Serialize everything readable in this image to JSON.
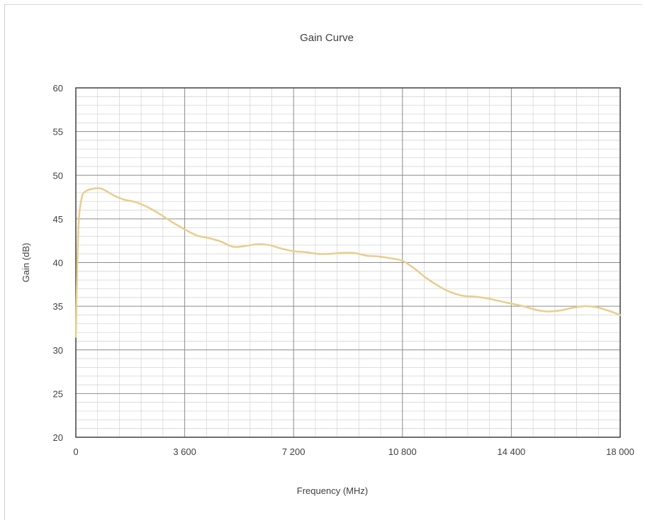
{
  "chart_data": {
    "type": "line",
    "title": "Gain Curve",
    "xlabel": "Frequency (MHz)",
    "ylabel": "Gain (dB)",
    "xlim": [
      0,
      18000
    ],
    "ylim": [
      20,
      60
    ],
    "xticks": [
      0,
      3600,
      7200,
      10800,
      14400,
      18000
    ],
    "xtick_labels": [
      "0",
      "3 600",
      "7 200",
      "10 800",
      "14 400",
      "18 000"
    ],
    "yticks": [
      20,
      25,
      30,
      35,
      40,
      45,
      50,
      55,
      60
    ],
    "ytick_labels": [
      "20",
      "25",
      "30",
      "35",
      "40",
      "45",
      "50",
      "55",
      "60"
    ],
    "grid": true,
    "minor_grid": true,
    "line_color": "#e8cd8c",
    "series": [
      {
        "x": [
          0,
          50,
          100,
          200,
          300,
          500,
          800,
          1000,
          1300,
          1600,
          2000,
          2400,
          2800,
          3200,
          3600,
          4000,
          4400,
          4800,
          5200,
          5600,
          6000,
          6400,
          6800,
          7200,
          7600,
          8000,
          8400,
          8800,
          9200,
          9600,
          10000,
          10400,
          10800,
          11200,
          11600,
          12000,
          12400,
          12800,
          13200,
          13600,
          14000,
          14400,
          14800,
          15200,
          15600,
          16000,
          16400,
          16800,
          17200,
          17600,
          18000
        ],
        "y": [
          31.5,
          40,
          45,
          47.5,
          48.1,
          48.4,
          48.5,
          48.2,
          47.6,
          47.2,
          46.9,
          46.3,
          45.5,
          44.6,
          43.8,
          43.1,
          42.8,
          42.4,
          41.8,
          41.9,
          42.1,
          42.0,
          41.6,
          41.3,
          41.2,
          41.0,
          41.0,
          41.1,
          41.1,
          40.8,
          40.7,
          40.5,
          40.2,
          39.3,
          38.2,
          37.3,
          36.6,
          36.2,
          36.1,
          35.9,
          35.6,
          35.3,
          35.0,
          34.6,
          34.4,
          34.5,
          34.8,
          35.0,
          34.9,
          34.5,
          34.0
        ]
      }
    ]
  }
}
